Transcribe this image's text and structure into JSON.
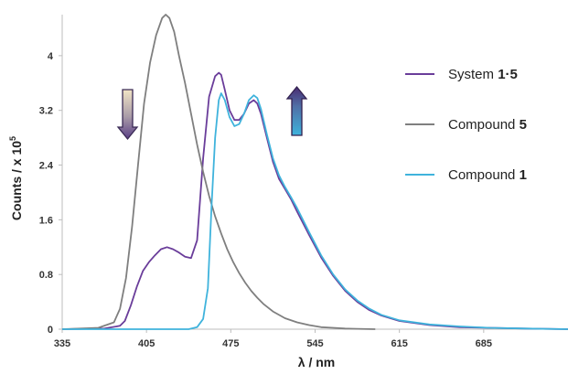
{
  "chart_data": {
    "type": "line",
    "title": "",
    "xlabel": "λ / nm",
    "ylabel_main": "Counts / x 10",
    "ylabel_sup": "5",
    "xlim": [
      335,
      755
    ],
    "ylim": [
      0,
      4.6
    ],
    "x_ticks": [
      335,
      405,
      475,
      545,
      615,
      685
    ],
    "y_ticks": [
      0,
      0.8,
      1.6,
      2.4,
      3.2,
      4
    ],
    "y_tick_labels": [
      "0",
      "0.8",
      "1.6",
      "2.4",
      "3.2",
      "4"
    ],
    "grid": false,
    "legend_position": "top-right",
    "series": [
      {
        "name_main": "System ",
        "name_bold": "1·5",
        "color": "#6a3d9a",
        "x": [
          335,
          370,
          383,
          387,
          392,
          397,
          402,
          407,
          412,
          417,
          422,
          427,
          432,
          437,
          442,
          447,
          452,
          457,
          462,
          465,
          467,
          470,
          474,
          478,
          482,
          486,
          490,
          494,
          497,
          500,
          505,
          510,
          515,
          520,
          525,
          530,
          540,
          550,
          560,
          570,
          580,
          590,
          600,
          615,
          640,
          665,
          690,
          720,
          755
        ],
        "y": [
          0,
          0.01,
          0.05,
          0.12,
          0.35,
          0.62,
          0.85,
          0.98,
          1.08,
          1.17,
          1.2,
          1.17,
          1.12,
          1.06,
          1.04,
          1.3,
          2.5,
          3.4,
          3.7,
          3.75,
          3.72,
          3.5,
          3.2,
          3.06,
          3.06,
          3.15,
          3.3,
          3.35,
          3.3,
          3.15,
          2.8,
          2.45,
          2.2,
          2.05,
          1.9,
          1.72,
          1.38,
          1.05,
          0.78,
          0.56,
          0.4,
          0.28,
          0.2,
          0.12,
          0.06,
          0.03,
          0.02,
          0.01,
          0.0
        ]
      },
      {
        "name_main": "Compound ",
        "name_bold": "5",
        "color": "#7f7f7f",
        "x": [
          335,
          365,
          378,
          383,
          388,
          393,
          398,
          403,
          408,
          413,
          418,
          421,
          424,
          428,
          432,
          437,
          442,
          447,
          452,
          457,
          462,
          467,
          472,
          477,
          482,
          487,
          492,
          497,
          502,
          510,
          520,
          530,
          540,
          550,
          560,
          570,
          580,
          595
        ],
        "y": [
          0,
          0.02,
          0.1,
          0.3,
          0.75,
          1.5,
          2.4,
          3.3,
          3.9,
          4.3,
          4.55,
          4.6,
          4.55,
          4.35,
          4.0,
          3.6,
          3.15,
          2.7,
          2.3,
          1.95,
          1.65,
          1.4,
          1.17,
          0.98,
          0.82,
          0.68,
          0.56,
          0.46,
          0.37,
          0.26,
          0.16,
          0.1,
          0.06,
          0.03,
          0.02,
          0.01,
          0.005,
          0
        ]
      },
      {
        "name_main": "Compound ",
        "name_bold": "1",
        "color": "#3fb3dc",
        "x": [
          335,
          440,
          447,
          452,
          456,
          459,
          462,
          465,
          467,
          470,
          474,
          478,
          482,
          486,
          490,
          494,
          497,
          500,
          505,
          510,
          515,
          520,
          525,
          530,
          540,
          550,
          560,
          570,
          580,
          590,
          600,
          615,
          640,
          665,
          690,
          720,
          755
        ],
        "y": [
          0,
          0,
          0.03,
          0.15,
          0.6,
          1.8,
          2.8,
          3.35,
          3.45,
          3.35,
          3.1,
          2.97,
          3.0,
          3.15,
          3.35,
          3.42,
          3.38,
          3.22,
          2.85,
          2.5,
          2.25,
          2.08,
          1.93,
          1.77,
          1.42,
          1.08,
          0.8,
          0.58,
          0.42,
          0.3,
          0.21,
          0.13,
          0.07,
          0.04,
          0.02,
          0.01,
          0.0
        ]
      }
    ],
    "annotations": [
      {
        "type": "arrow",
        "direction": "down",
        "near_x": 393
      },
      {
        "type": "arrow",
        "direction": "up",
        "near_x": 470
      }
    ]
  }
}
